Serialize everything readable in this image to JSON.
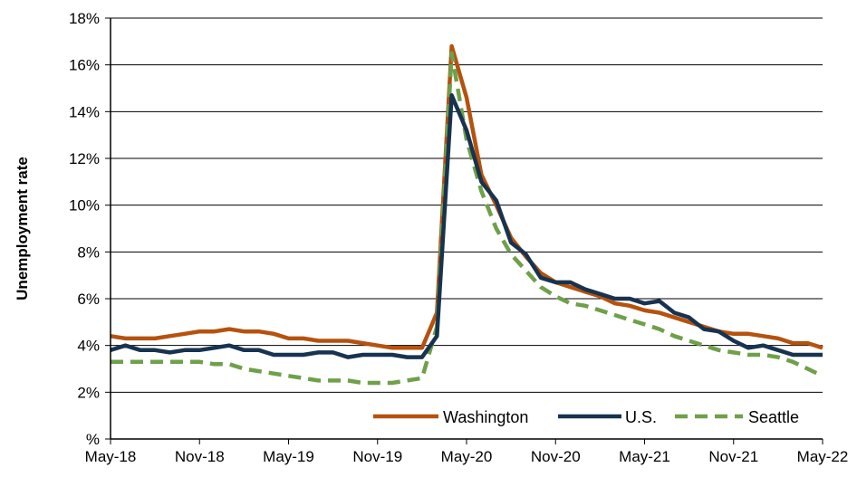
{
  "chart_data": {
    "type": "line",
    "title": "",
    "xlabel": "",
    "ylabel": "Unemployment rate",
    "ylim": [
      0,
      18
    ],
    "y_ticks": [
      0,
      2,
      4,
      6,
      8,
      10,
      12,
      14,
      16,
      18
    ],
    "y_tick_labels": [
      "%",
      "2%",
      "4%",
      "6%",
      "8%",
      "10%",
      "12%",
      "14%",
      "16%",
      "18%"
    ],
    "x_tick_labels": [
      "May-18",
      "Nov-18",
      "May-19",
      "Nov-19",
      "May-20",
      "Nov-20",
      "May-21",
      "Nov-21",
      "May-22"
    ],
    "x": [
      "May-18",
      "Jun-18",
      "Jul-18",
      "Aug-18",
      "Sep-18",
      "Oct-18",
      "Nov-18",
      "Dec-18",
      "Jan-19",
      "Feb-19",
      "Mar-19",
      "Apr-19",
      "May-19",
      "Jun-19",
      "Jul-19",
      "Aug-19",
      "Sep-19",
      "Oct-19",
      "Nov-19",
      "Dec-19",
      "Jan-20",
      "Feb-20",
      "Mar-20",
      "Apr-20",
      "May-20",
      "Jun-20",
      "Jul-20",
      "Aug-20",
      "Sep-20",
      "Oct-20",
      "Nov-20",
      "Dec-20",
      "Jan-21",
      "Feb-21",
      "Mar-21",
      "Apr-21",
      "May-21",
      "Jun-21",
      "Jul-21",
      "Aug-21",
      "Sep-21",
      "Oct-21",
      "Nov-21",
      "Dec-21",
      "Jan-22",
      "Feb-22",
      "Mar-22",
      "Apr-22",
      "May-22"
    ],
    "grid": "horizontal",
    "legend_position": "bottom-right",
    "series": [
      {
        "name": "Washington",
        "color": "#B5520E",
        "style": "solid",
        "values": [
          4.4,
          4.3,
          4.3,
          4.3,
          4.4,
          4.5,
          4.6,
          4.6,
          4.7,
          4.6,
          4.6,
          4.5,
          4.3,
          4.3,
          4.2,
          4.2,
          4.2,
          4.1,
          4.0,
          3.9,
          3.9,
          3.9,
          5.4,
          16.8,
          14.6,
          11.3,
          10.0,
          8.6,
          7.8,
          7.1,
          6.7,
          6.5,
          6.3,
          6.1,
          5.8,
          5.7,
          5.5,
          5.4,
          5.2,
          5.0,
          4.8,
          4.6,
          4.5,
          4.5,
          4.4,
          4.3,
          4.1,
          4.1,
          3.9
        ]
      },
      {
        "name": "U.S.",
        "color": "#17334F",
        "style": "solid",
        "values": [
          3.8,
          4.0,
          3.8,
          3.8,
          3.7,
          3.8,
          3.8,
          3.9,
          4.0,
          3.8,
          3.8,
          3.6,
          3.6,
          3.6,
          3.7,
          3.7,
          3.5,
          3.6,
          3.6,
          3.6,
          3.5,
          3.5,
          4.4,
          14.7,
          13.2,
          11.0,
          10.2,
          8.4,
          7.9,
          6.9,
          6.7,
          6.7,
          6.4,
          6.2,
          6.0,
          6.0,
          5.8,
          5.9,
          5.4,
          5.2,
          4.7,
          4.6,
          4.2,
          3.9,
          4.0,
          3.8,
          3.6,
          3.6,
          3.6
        ]
      },
      {
        "name": "Seattle",
        "color": "#6FA04A",
        "style": "dashed",
        "values": [
          3.3,
          3.3,
          3.3,
          3.3,
          3.3,
          3.3,
          3.3,
          3.2,
          3.2,
          3.0,
          2.9,
          2.8,
          2.7,
          2.6,
          2.5,
          2.5,
          2.5,
          2.4,
          2.4,
          2.4,
          2.5,
          2.6,
          4.8,
          16.5,
          12.8,
          10.6,
          9.0,
          7.9,
          7.2,
          6.5,
          6.1,
          5.8,
          5.7,
          5.5,
          5.3,
          5.1,
          4.9,
          4.7,
          4.4,
          4.2,
          4.0,
          3.8,
          3.7,
          3.6,
          3.6,
          3.5,
          3.3,
          3.0,
          2.7
        ]
      }
    ]
  }
}
